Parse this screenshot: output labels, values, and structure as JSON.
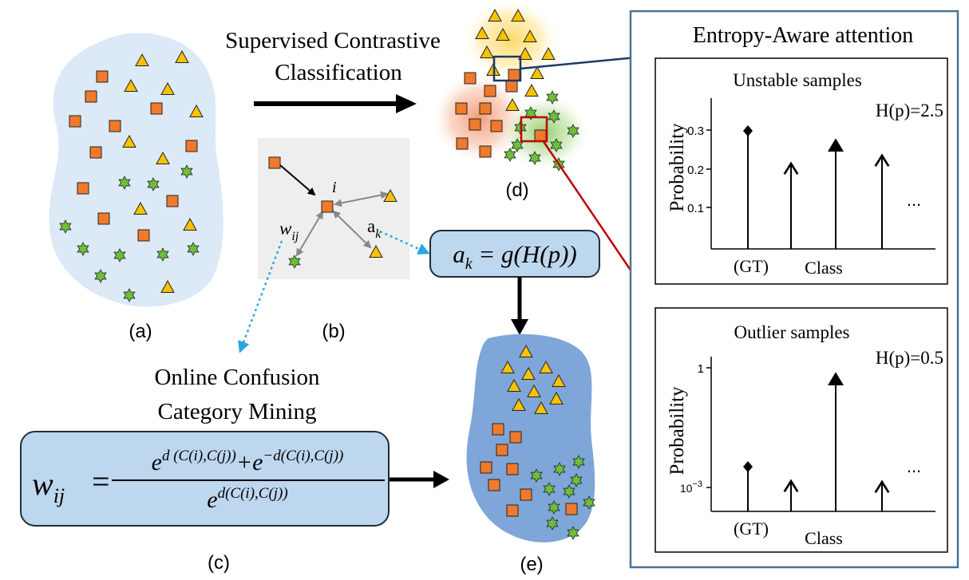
{
  "colors": {
    "blob_light": "#dce9f6",
    "blob_dark": "#7fa6d8",
    "box_fill": "#bdd7ee",
    "box_stroke": "#1f2d3d",
    "panel_stroke": "#4a7394",
    "square": "#f07a2c",
    "triangle": "#f7c200",
    "star": "#6cbf3a",
    "arrow_navy": "#1f3864",
    "arrow_red": "#c00000",
    "dotted_blue": "#2aa6e0",
    "graph_bg": "#eeeeee"
  },
  "icons": {
    "class_a": "square",
    "class_b": "triangle",
    "class_c": "star"
  },
  "labels": {
    "a": "(a)",
    "b": "(b)",
    "c": "(c)",
    "d": "(d)",
    "e": "(e)",
    "supervised_line1": "Supervised Contrastive",
    "supervised_line2": "Classification",
    "online_line1": "Online Confusion",
    "online_line2": "Category Mining",
    "node_i": "i",
    "w_ij": "w",
    "w_ij_sub": "ij",
    "a_k": "a",
    "a_k_sub": "k"
  },
  "formula_ak": {
    "lhs": "a",
    "sub": "k",
    "rhs": " = g(H(p))"
  },
  "formula_wij": {
    "lhs": "w",
    "lhs_sub": "ij",
    "equals": "=",
    "num_e1": "e",
    "num_exp1": "d (C(i),C(j))",
    "num_plus": "+",
    "num_e2": "e",
    "num_exp2": "−d(C(i),C(j))",
    "den_e": "e",
    "den_exp": "d(C(i),C(j))"
  },
  "panel": {
    "title": "Entropy-Aware attention",
    "unstable": {
      "title": "Unstable samples",
      "entropy": "H(p)=2.5",
      "ylabel": "Probability",
      "xlabel": "Class",
      "gt": "(GT)",
      "ellipsis": "...",
      "ticks": [
        "0.3",
        "0.2",
        "0.1"
      ]
    },
    "outlier": {
      "title": "Outlier samples",
      "entropy": "H(p)=0.5",
      "ylabel": "Probability",
      "xlabel": "Class",
      "gt": "(GT)",
      "ellipsis": "...",
      "tick_top": "1",
      "tick_bottom_base": "10",
      "tick_bottom_exp": "−3"
    }
  }
}
